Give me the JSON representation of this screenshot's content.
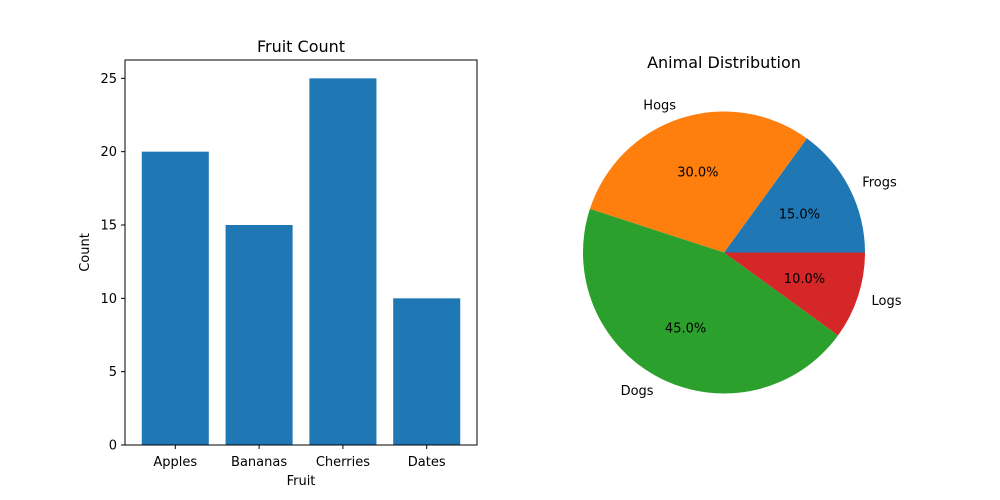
{
  "chart_data": [
    {
      "type": "bar",
      "title": "Fruit Count",
      "xlabel": "Fruit",
      "ylabel": "Count",
      "categories": [
        "Apples",
        "Bananas",
        "Cherries",
        "Dates"
      ],
      "values": [
        20,
        15,
        25,
        10
      ],
      "ylim": [
        0,
        26.25
      ],
      "yticks": [
        0,
        5,
        10,
        15,
        20,
        25
      ],
      "color": "#1f77b4",
      "grid": false
    },
    {
      "type": "pie",
      "title": "Animal Distribution",
      "labels": [
        "Frogs",
        "Hogs",
        "Dogs",
        "Logs"
      ],
      "values": [
        15,
        30,
        45,
        10
      ],
      "pct_labels": [
        "15.0%",
        "30.0%",
        "45.0%",
        "10.0%"
      ],
      "colors": [
        "#1f77b4",
        "#ff7f0e",
        "#2ca02c",
        "#d62728"
      ],
      "start_angle": 0,
      "direction": "counterclockwise"
    }
  ]
}
